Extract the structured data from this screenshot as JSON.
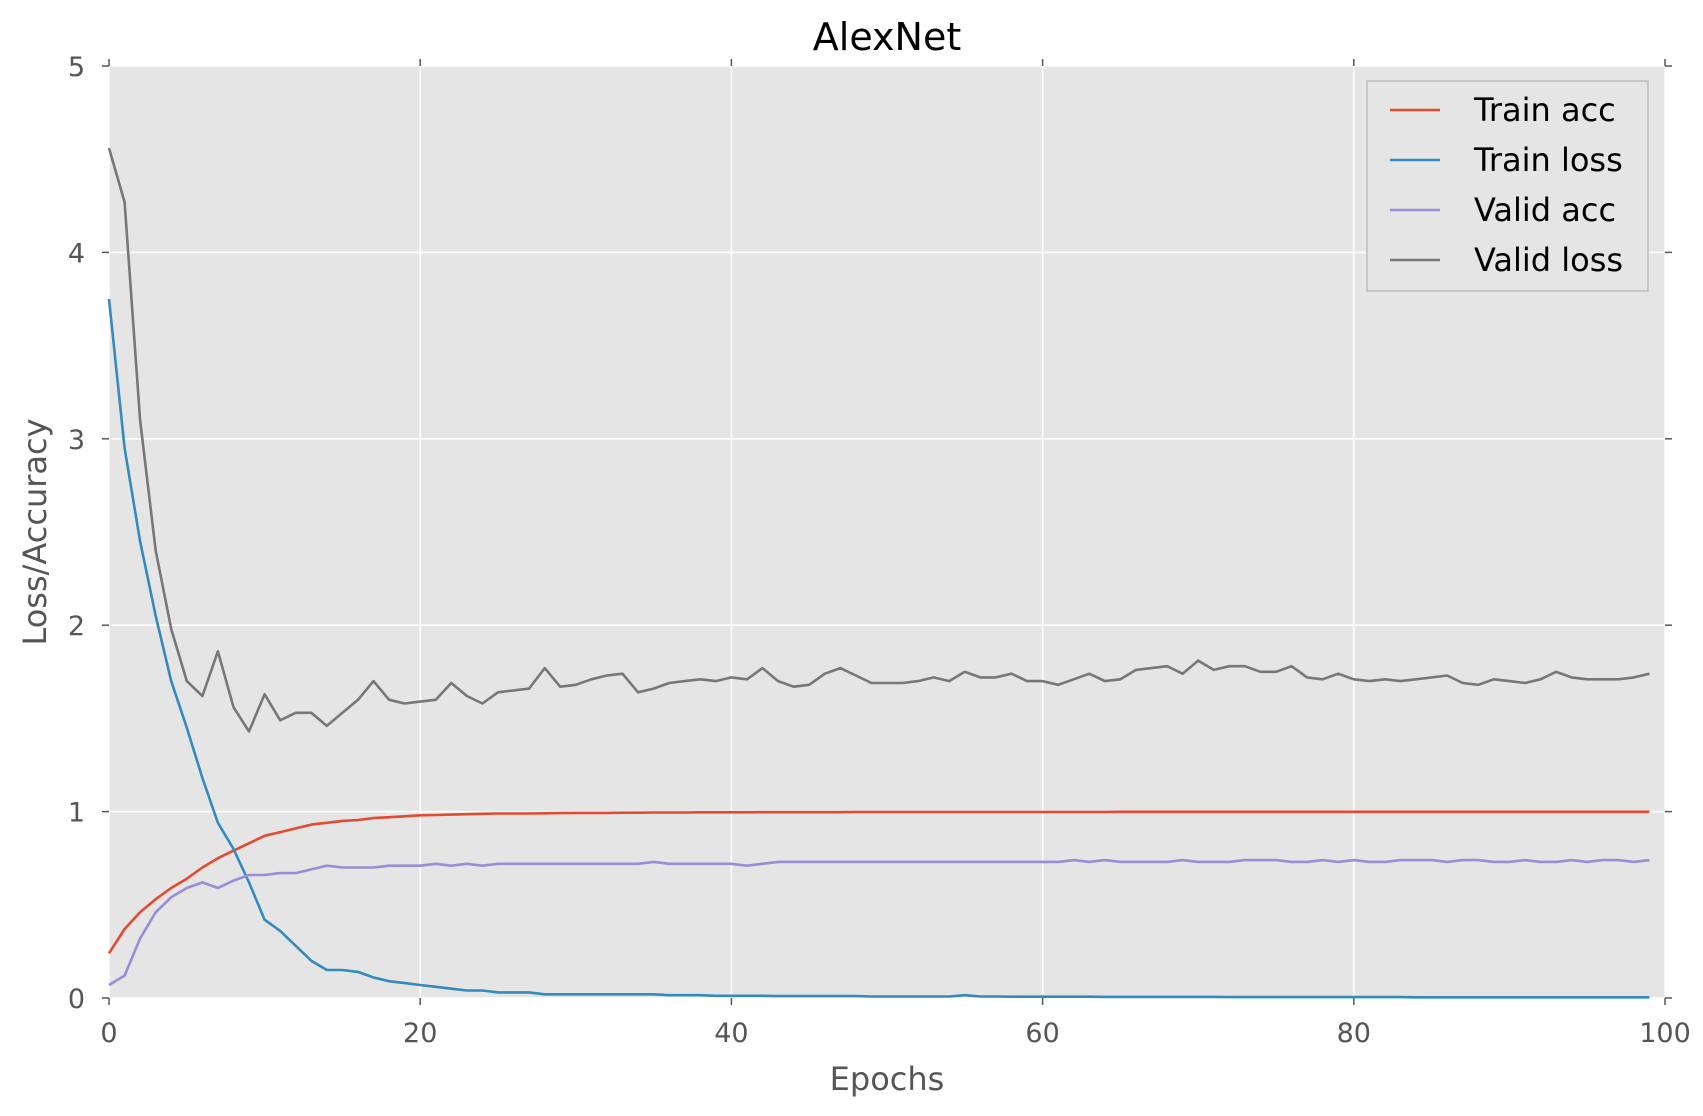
{
  "chart_data": {
    "type": "line",
    "title": "AlexNet",
    "xlabel": "Epochs",
    "ylabel": "Loss/Accuracy",
    "xlim": [
      0,
      100
    ],
    "ylim": [
      0,
      5
    ],
    "x_ticks": [
      "0",
      "20",
      "40",
      "60",
      "80",
      "100"
    ],
    "x_tick_values": [
      0,
      20,
      40,
      60,
      80,
      100
    ],
    "y_ticks": [
      "0",
      "1",
      "2",
      "3",
      "4",
      "5"
    ],
    "y_tick_values": [
      0,
      1,
      2,
      3,
      4,
      5
    ],
    "grid": true,
    "background": "#e5e5e5",
    "legend_position": "top-right",
    "series": [
      {
        "name": "Train acc",
        "color": "#e24a33",
        "values": [
          0.24,
          0.37,
          0.46,
          0.53,
          0.59,
          0.64,
          0.7,
          0.75,
          0.79,
          0.83,
          0.87,
          0.89,
          0.91,
          0.93,
          0.94,
          0.95,
          0.955,
          0.965,
          0.97,
          0.975,
          0.98,
          0.982,
          0.984,
          0.986,
          0.988,
          0.99,
          0.99,
          0.99,
          0.991,
          0.992,
          0.993,
          0.993,
          0.993,
          0.994,
          0.994,
          0.995,
          0.995,
          0.995,
          0.996,
          0.996,
          0.996,
          0.996,
          0.997,
          0.997,
          0.997,
          0.997,
          0.997,
          0.997,
          0.998,
          0.998,
          0.998,
          0.998,
          0.998,
          0.998,
          0.998,
          0.998,
          0.998,
          0.998,
          0.998,
          0.998,
          0.998,
          0.998,
          0.998,
          0.998,
          0.998,
          0.999,
          0.999,
          0.999,
          0.999,
          0.999,
          0.999,
          0.999,
          0.999,
          0.999,
          0.999,
          0.999,
          0.999,
          0.999,
          0.999,
          0.999,
          0.999,
          0.999,
          0.999,
          0.999,
          0.999,
          0.999,
          0.999,
          0.999,
          0.999,
          0.999,
          0.999,
          0.999,
          0.999,
          0.999,
          0.999,
          0.999,
          0.999,
          0.999,
          0.999,
          0.999
        ]
      },
      {
        "name": "Train loss",
        "color": "#348abd",
        "values": [
          3.75,
          2.95,
          2.45,
          2.05,
          1.7,
          1.45,
          1.18,
          0.94,
          0.8,
          0.62,
          0.42,
          0.36,
          0.28,
          0.2,
          0.15,
          0.15,
          0.14,
          0.11,
          0.09,
          0.08,
          0.07,
          0.06,
          0.05,
          0.04,
          0.04,
          0.03,
          0.03,
          0.03,
          0.02,
          0.02,
          0.02,
          0.02,
          0.02,
          0.02,
          0.02,
          0.02,
          0.015,
          0.015,
          0.015,
          0.012,
          0.012,
          0.012,
          0.012,
          0.01,
          0.01,
          0.01,
          0.01,
          0.01,
          0.01,
          0.008,
          0.008,
          0.008,
          0.008,
          0.008,
          0.008,
          0.015,
          0.008,
          0.008,
          0.007,
          0.007,
          0.007,
          0.007,
          0.007,
          0.007,
          0.006,
          0.006,
          0.006,
          0.006,
          0.006,
          0.006,
          0.006,
          0.006,
          0.005,
          0.005,
          0.005,
          0.005,
          0.005,
          0.005,
          0.005,
          0.005,
          0.005,
          0.005,
          0.005,
          0.005,
          0.004,
          0.004,
          0.004,
          0.004,
          0.004,
          0.004,
          0.004,
          0.004,
          0.004,
          0.004,
          0.004,
          0.004,
          0.004,
          0.004,
          0.004,
          0.004
        ]
      },
      {
        "name": "Valid acc",
        "color": "#988ed5",
        "values": [
          0.07,
          0.12,
          0.32,
          0.46,
          0.54,
          0.59,
          0.62,
          0.59,
          0.63,
          0.66,
          0.66,
          0.67,
          0.67,
          0.69,
          0.71,
          0.7,
          0.7,
          0.7,
          0.71,
          0.71,
          0.71,
          0.72,
          0.71,
          0.72,
          0.71,
          0.72,
          0.72,
          0.72,
          0.72,
          0.72,
          0.72,
          0.72,
          0.72,
          0.72,
          0.72,
          0.73,
          0.72,
          0.72,
          0.72,
          0.72,
          0.72,
          0.71,
          0.72,
          0.73,
          0.73,
          0.73,
          0.73,
          0.73,
          0.73,
          0.73,
          0.73,
          0.73,
          0.73,
          0.73,
          0.73,
          0.73,
          0.73,
          0.73,
          0.73,
          0.73,
          0.73,
          0.73,
          0.74,
          0.73,
          0.74,
          0.73,
          0.73,
          0.73,
          0.73,
          0.74,
          0.73,
          0.73,
          0.73,
          0.74,
          0.74,
          0.74,
          0.73,
          0.73,
          0.74,
          0.73,
          0.74,
          0.73,
          0.73,
          0.74,
          0.74,
          0.74,
          0.73,
          0.74,
          0.74,
          0.73,
          0.73,
          0.74,
          0.73,
          0.73,
          0.74,
          0.73,
          0.74,
          0.74,
          0.73,
          0.74
        ]
      },
      {
        "name": "Valid loss",
        "color": "#777777",
        "values": [
          4.56,
          4.27,
          3.1,
          2.4,
          1.98,
          1.7,
          1.62,
          1.86,
          1.56,
          1.43,
          1.63,
          1.49,
          1.53,
          1.53,
          1.46,
          1.53,
          1.6,
          1.7,
          1.6,
          1.58,
          1.59,
          1.6,
          1.69,
          1.62,
          1.58,
          1.64,
          1.65,
          1.66,
          1.77,
          1.67,
          1.68,
          1.71,
          1.73,
          1.74,
          1.64,
          1.66,
          1.69,
          1.7,
          1.71,
          1.7,
          1.72,
          1.71,
          1.77,
          1.7,
          1.67,
          1.68,
          1.74,
          1.77,
          1.73,
          1.69,
          1.69,
          1.69,
          1.7,
          1.72,
          1.7,
          1.75,
          1.72,
          1.72,
          1.74,
          1.7,
          1.7,
          1.68,
          1.71,
          1.74,
          1.7,
          1.71,
          1.76,
          1.77,
          1.78,
          1.74,
          1.81,
          1.76,
          1.78,
          1.78,
          1.75,
          1.75,
          1.78,
          1.72,
          1.71,
          1.74,
          1.71,
          1.7,
          1.71,
          1.7,
          1.71,
          1.72,
          1.73,
          1.69,
          1.68,
          1.71,
          1.7,
          1.69,
          1.71,
          1.75,
          1.72,
          1.71,
          1.71,
          1.71,
          1.72,
          1.74
        ]
      }
    ]
  }
}
